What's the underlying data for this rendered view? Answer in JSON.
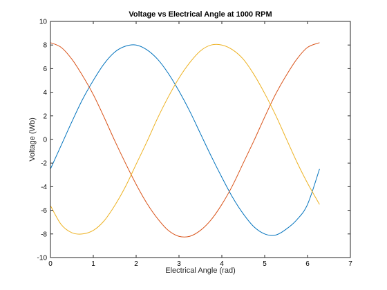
{
  "chart_data": {
    "type": "line",
    "title": "Voltage vs Electrical Angle at 1000 RPM",
    "xlabel": "Electrical Angle (rad)",
    "ylabel": "Voltage (Wb)",
    "xlim": [
      0,
      7
    ],
    "ylim": [
      -10,
      10
    ],
    "xticks": [
      "0",
      "1",
      "2",
      "3",
      "4",
      "5",
      "6",
      "7"
    ],
    "yticks": [
      "-10",
      "-8",
      "-6",
      "-4",
      "-2",
      "0",
      "2",
      "4",
      "6",
      "8",
      "10"
    ],
    "grid": false,
    "x": [
      0,
      0.25,
      0.5,
      0.75,
      1.0,
      1.25,
      1.5,
      1.75,
      2.0,
      2.25,
      2.5,
      2.75,
      3.0,
      3.25,
      3.5,
      3.75,
      4.0,
      4.25,
      4.5,
      4.75,
      5.0,
      5.25,
      5.5,
      5.75,
      6.0,
      6.28
    ],
    "series": [
      {
        "color": "#0072BD",
        "values": [
          -2.5,
          -0.5,
          1.5,
          3.4,
          5.0,
          6.4,
          7.4,
          7.9,
          8.0,
          7.6,
          6.8,
          5.6,
          4.1,
          2.4,
          0.5,
          -1.4,
          -3.2,
          -4.9,
          -6.3,
          -7.4,
          -8.0,
          -8.1,
          -7.6,
          -6.8,
          -5.5,
          -2.5
        ]
      },
      {
        "color": "#D95319",
        "values": [
          8.2,
          7.8,
          6.8,
          5.4,
          3.8,
          1.9,
          -0.1,
          -2.0,
          -3.8,
          -5.4,
          -6.7,
          -7.7,
          -8.2,
          -8.2,
          -7.7,
          -6.8,
          -5.5,
          -3.9,
          -2.0,
          -0.1,
          1.9,
          3.8,
          5.4,
          6.8,
          7.8,
          8.2
        ]
      },
      {
        "color": "#EDB120",
        "values": [
          -5.6,
          -7.2,
          -7.9,
          -8.0,
          -7.7,
          -6.9,
          -5.6,
          -4.0,
          -2.1,
          -0.2,
          1.8,
          3.6,
          5.2,
          6.5,
          7.5,
          8.0,
          8.0,
          7.6,
          6.8,
          5.5,
          3.9,
          2.1,
          0.1,
          -1.9,
          -3.7,
          -5.5
        ]
      }
    ]
  }
}
